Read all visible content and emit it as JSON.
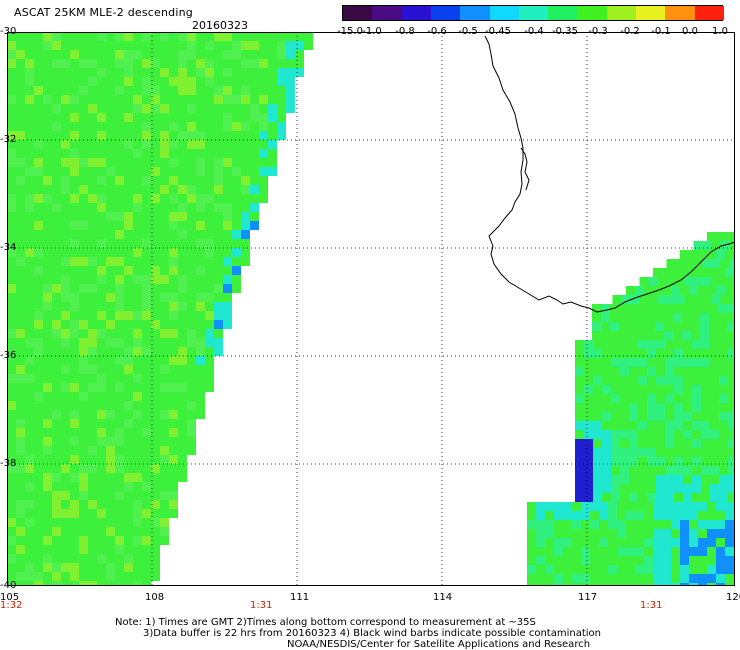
{
  "header": {
    "title": "ASCAT 25KM MLE-2 descending",
    "date": "20160323"
  },
  "colorbar": {
    "labels": [
      "-15.0",
      "-1.0",
      "-0.8",
      "-0.6",
      "-0.5",
      "-0.45",
      "-0.4",
      "-0.35",
      "-0.3",
      "-0.2",
      "-0.1",
      "0.0",
      "1.0"
    ],
    "colors": [
      "#3a0a45",
      "#4a0b85",
      "#2a10d0",
      "#0a40f0",
      "#1090ff",
      "#10d8ff",
      "#20f0c0",
      "#20f060",
      "#40f020",
      "#a0f020",
      "#e8f020",
      "#ff9010",
      "#ff2010"
    ]
  },
  "map": {
    "lat_labels": [
      "-30",
      "-32",
      "-34",
      "-36",
      "-38",
      "-40"
    ],
    "lon_labels": [
      "105",
      "108",
      "111",
      "114",
      "117",
      "120"
    ],
    "time_labels": [
      "1:32",
      "1:31",
      "1:31"
    ],
    "colors": {
      "field_green": "#3cf03c",
      "field_cyan": "#20e8d0",
      "field_blue": "#1090ff",
      "field_deep": "#2020d0",
      "field_purple": "#3a0a45",
      "coast": "#000000",
      "grid": "#000000"
    }
  },
  "notes": {
    "line1": "Note: 1) Times are GMT 2)Times along bottom correspond to measurement at ~35S",
    "line2": "3)Data buffer is 22 hrs from 20160323 4) Black wind barbs indicate possible contamination",
    "line3": "NOAA/NESDIS/Center for Satellite Applications and Research"
  }
}
